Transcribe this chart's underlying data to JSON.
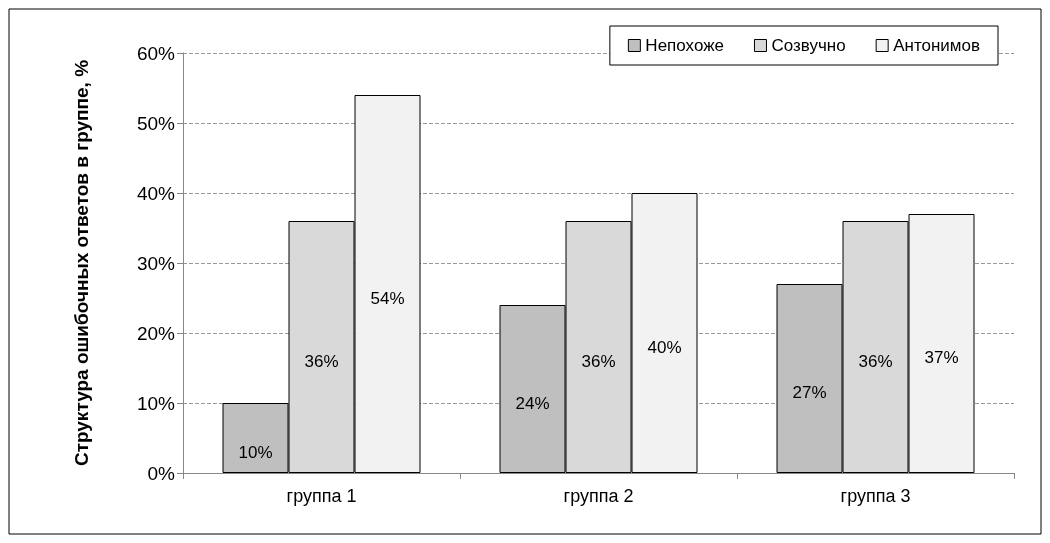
{
  "chart_data": {
    "type": "bar",
    "ylabel": "Структура ошибочных ответов в группе, %",
    "categories": [
      "группа 1",
      "группа 2",
      "группа 3"
    ],
    "series": [
      {
        "name": "Непохоже",
        "color": "#bfbfbf",
        "values": [
          10,
          24,
          27
        ],
        "value_labels": [
          "10%",
          "24%",
          "27%"
        ]
      },
      {
        "name": "Созвучно",
        "color": "#d9d9d9",
        "values": [
          36,
          36,
          36
        ],
        "value_labels": [
          "36%",
          "36%",
          "36%"
        ]
      },
      {
        "name": "Антонимов",
        "color": "#f2f2f2",
        "values": [
          54,
          40,
          37
        ],
        "value_labels": [
          "54%",
          "40%",
          "37%"
        ]
      }
    ],
    "ylim": [
      0,
      60
    ],
    "yticks": [
      {
        "value": 0,
        "label": "0%"
      },
      {
        "value": 10,
        "label": "10%"
      },
      {
        "value": 20,
        "label": "20%"
      },
      {
        "value": 30,
        "label": "30%"
      },
      {
        "value": 40,
        "label": "40%"
      },
      {
        "value": 50,
        "label": "50%"
      },
      {
        "value": 60,
        "label": "60%"
      }
    ],
    "grid": "y",
    "legend": "top right"
  }
}
